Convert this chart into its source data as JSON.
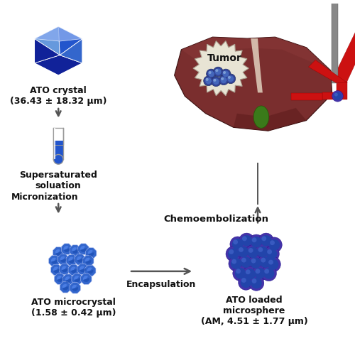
{
  "bg_color": "#ffffff",
  "arrow_color": "#555555",
  "text_color": "#111111",
  "crystal_color_main": "#2255cc",
  "crystal_color_light": "#6699dd",
  "crystal_color_dark": "#112299",
  "crystal_color_medium": "#3366cc",
  "microcrystal_color_main": "#3366cc",
  "microcrystal_color_light": "#5588ee",
  "microcrystal_color_dark": "#1144aa",
  "microsphere_color_outer": "#4433aa",
  "microsphere_color_inner": "#2244aa",
  "microsphere_color_highlight": "#6655cc",
  "microsphere_cell_color": "#2244aa",
  "microsphere_cell_highlight": "#4466cc",
  "liver_color_main": "#7a2e2e",
  "liver_color_light": "#8a3838",
  "liver_color_dark": "#5a1a1a",
  "liver_color_shadow": "#6a2424",
  "vessel_color": "#cc1111",
  "vessel_color_dark": "#990000",
  "gallbladder_color": "#3a7a1a",
  "gallbladder_color_dark": "#2a5a0a",
  "liver_connector_color": "#f0e8d8",
  "tumor_badge_color": "#e8e4d4",
  "tumor_badge_edge": "#aaa090",
  "tumor_cell_color": "#334499",
  "tumor_cell_highlight": "#5577bb",
  "tumor_text_color": "#111111",
  "tube_outline": "#999999",
  "tube_liquid_color": "#2255cc",
  "tube_empty_color": "#ffffff",
  "label_ato_crystal": "ATO crystal\n(36.43 ± 18.32 μm)",
  "label_supersaturated": "Supersaturated\nsoluation",
  "label_micronization": "Micronization",
  "label_ato_microcrystal": "ATO microcrystal\n(1.58 ± 0.42 μm)",
  "label_encapsulation": "Encapsulation",
  "label_ato_microsphere": "ATO loaded\nmicrosphere\n(AM, 4.51 ± 1.77 μm)",
  "label_chemoembolization": "Chemoembolization",
  "label_tumor": "Tumor",
  "font_size_label": 9,
  "font_size_process": 9,
  "font_size_tumor": 10
}
